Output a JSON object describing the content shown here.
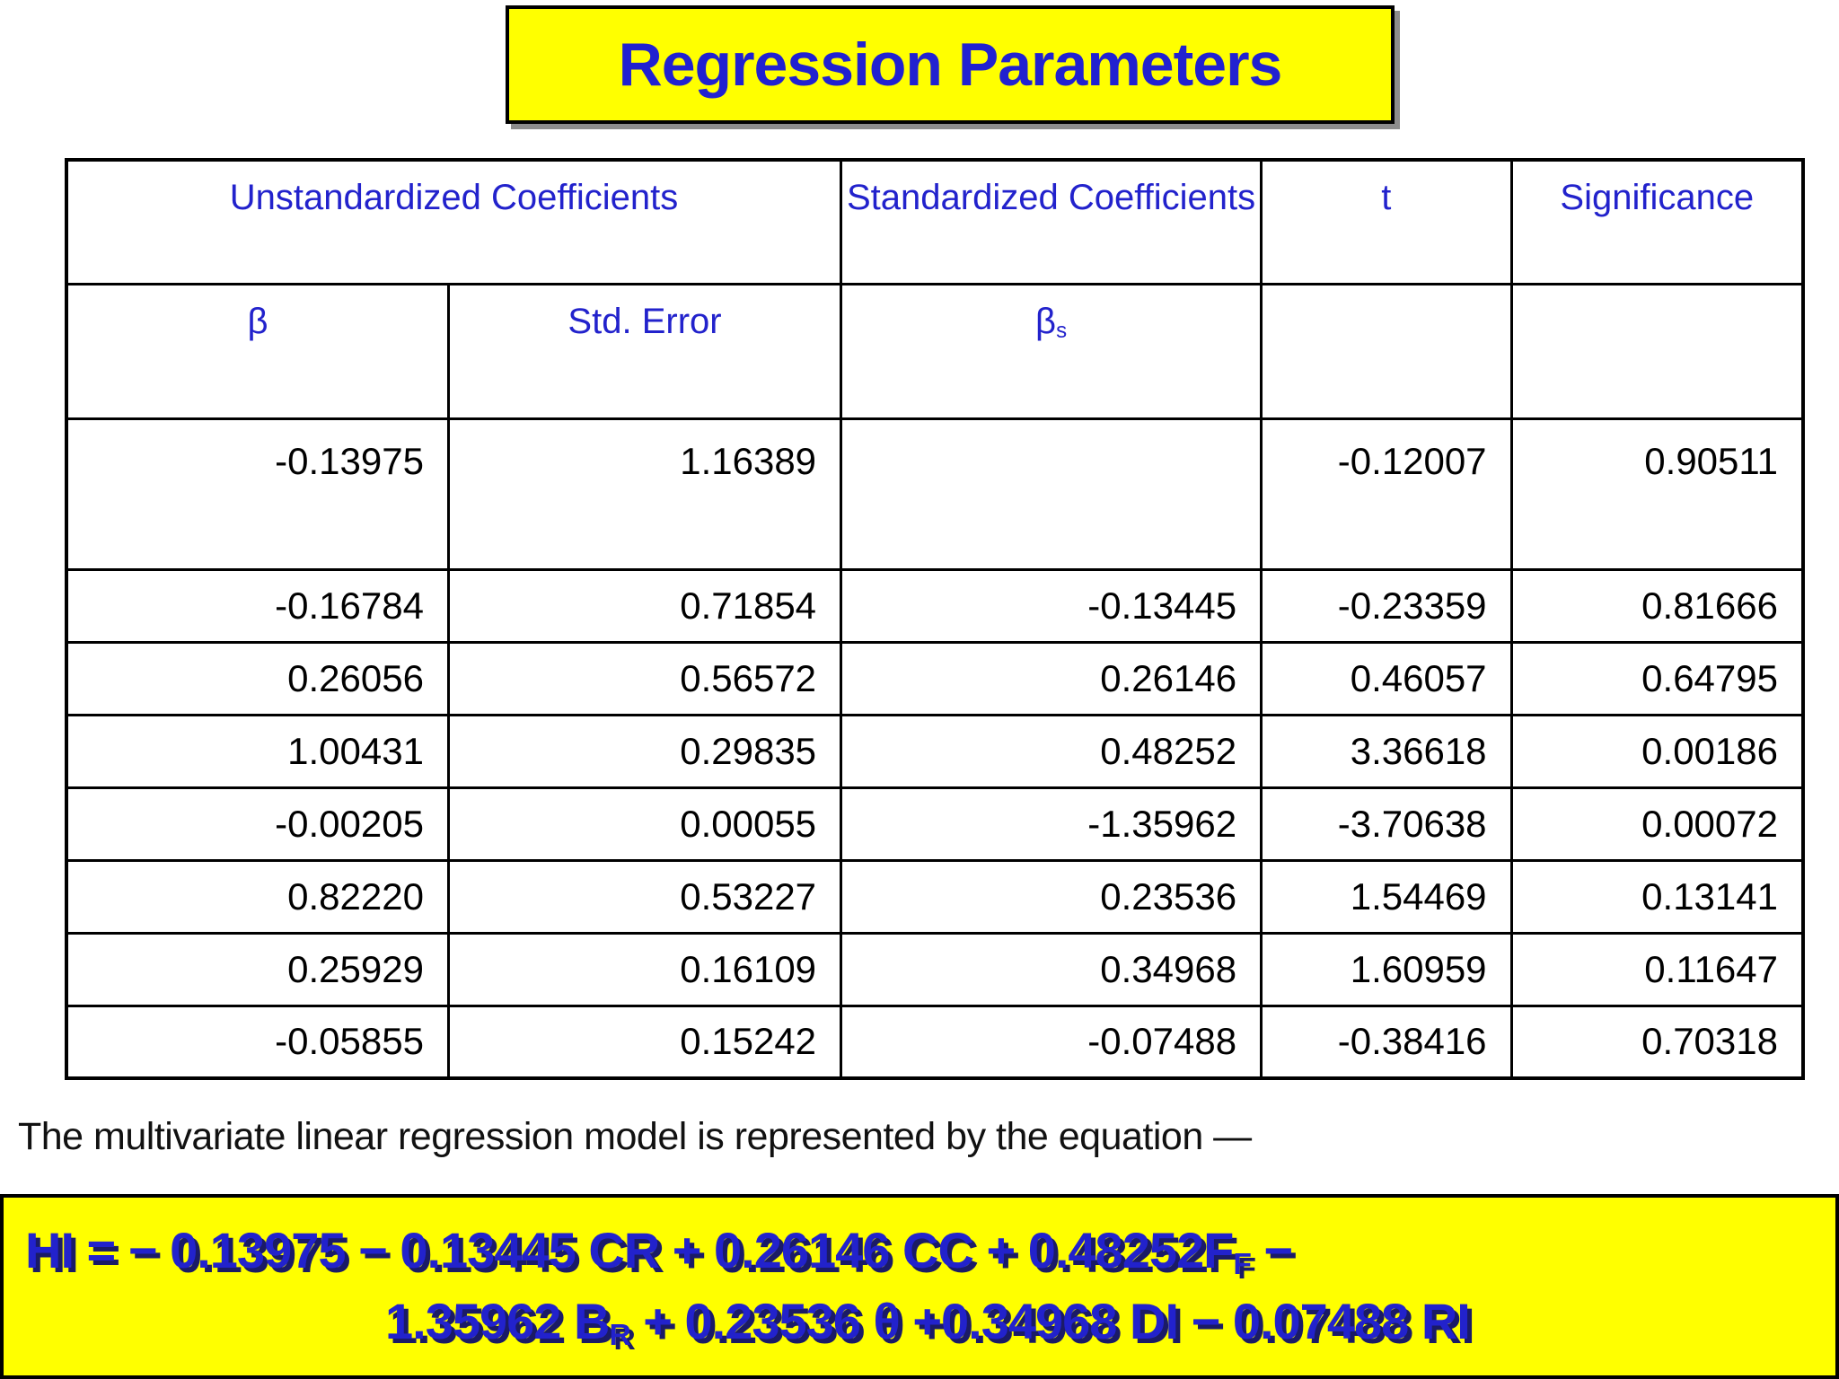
{
  "title": "Regression Parameters",
  "caption": "The multivariate linear regression model is represented by the equation —",
  "table": {
    "header_row1": [
      {
        "label": "Unstandardized Coefficients"
      },
      {
        "label": "Standardized Coefficients"
      },
      {
        "label": "t"
      },
      {
        "label": "Significance"
      }
    ],
    "header_row2": {
      "beta": "β",
      "std_error": "Std. Error",
      "beta_s_base": "β",
      "beta_s_sub": "s"
    },
    "rows": [
      [
        "-0.13975",
        "1.16389",
        "",
        "-0.12007",
        "0.90511"
      ],
      [
        "-0.16784",
        "0.71854",
        "-0.13445",
        "-0.23359",
        "0.81666"
      ],
      [
        "0.26056",
        "0.56572",
        "0.26146",
        "0.46057",
        "0.64795"
      ],
      [
        "1.00431",
        "0.29835",
        "0.48252",
        "3.36618",
        "0.00186"
      ],
      [
        "-0.00205",
        "0.00055",
        "-1.35962",
        "-3.70638",
        "0.00072"
      ],
      [
        "0.82220",
        "0.53227",
        "0.23536",
        "1.54469",
        "0.13141"
      ],
      [
        "0.25929",
        "0.16109",
        "0.34968",
        "1.60959",
        "0.11647"
      ],
      [
        "-0.05855",
        "0.15242",
        "-0.07488",
        "-0.38416",
        "0.70318"
      ]
    ]
  },
  "equation": {
    "line1": [
      {
        "t": "HI = − 0.13975 − 0.13445 CR + 0.26146 CC + 0.48252F"
      },
      {
        "t": "F",
        "sub": true
      },
      {
        "t": " −"
      }
    ],
    "line2": [
      {
        "t": "1.35962 B"
      },
      {
        "t": "R",
        "sub": true
      },
      {
        "t": " + 0.23536 θ +0.34968 DI − 0.07488 RI"
      }
    ]
  },
  "colors": {
    "highlight_yellow": "#FFFF00",
    "text_blue": "#2222CC",
    "title_blue": "#2121D0",
    "equation_shadow_navy": "#1B1B66",
    "border_black": "#000000",
    "body_text": "#111111"
  }
}
